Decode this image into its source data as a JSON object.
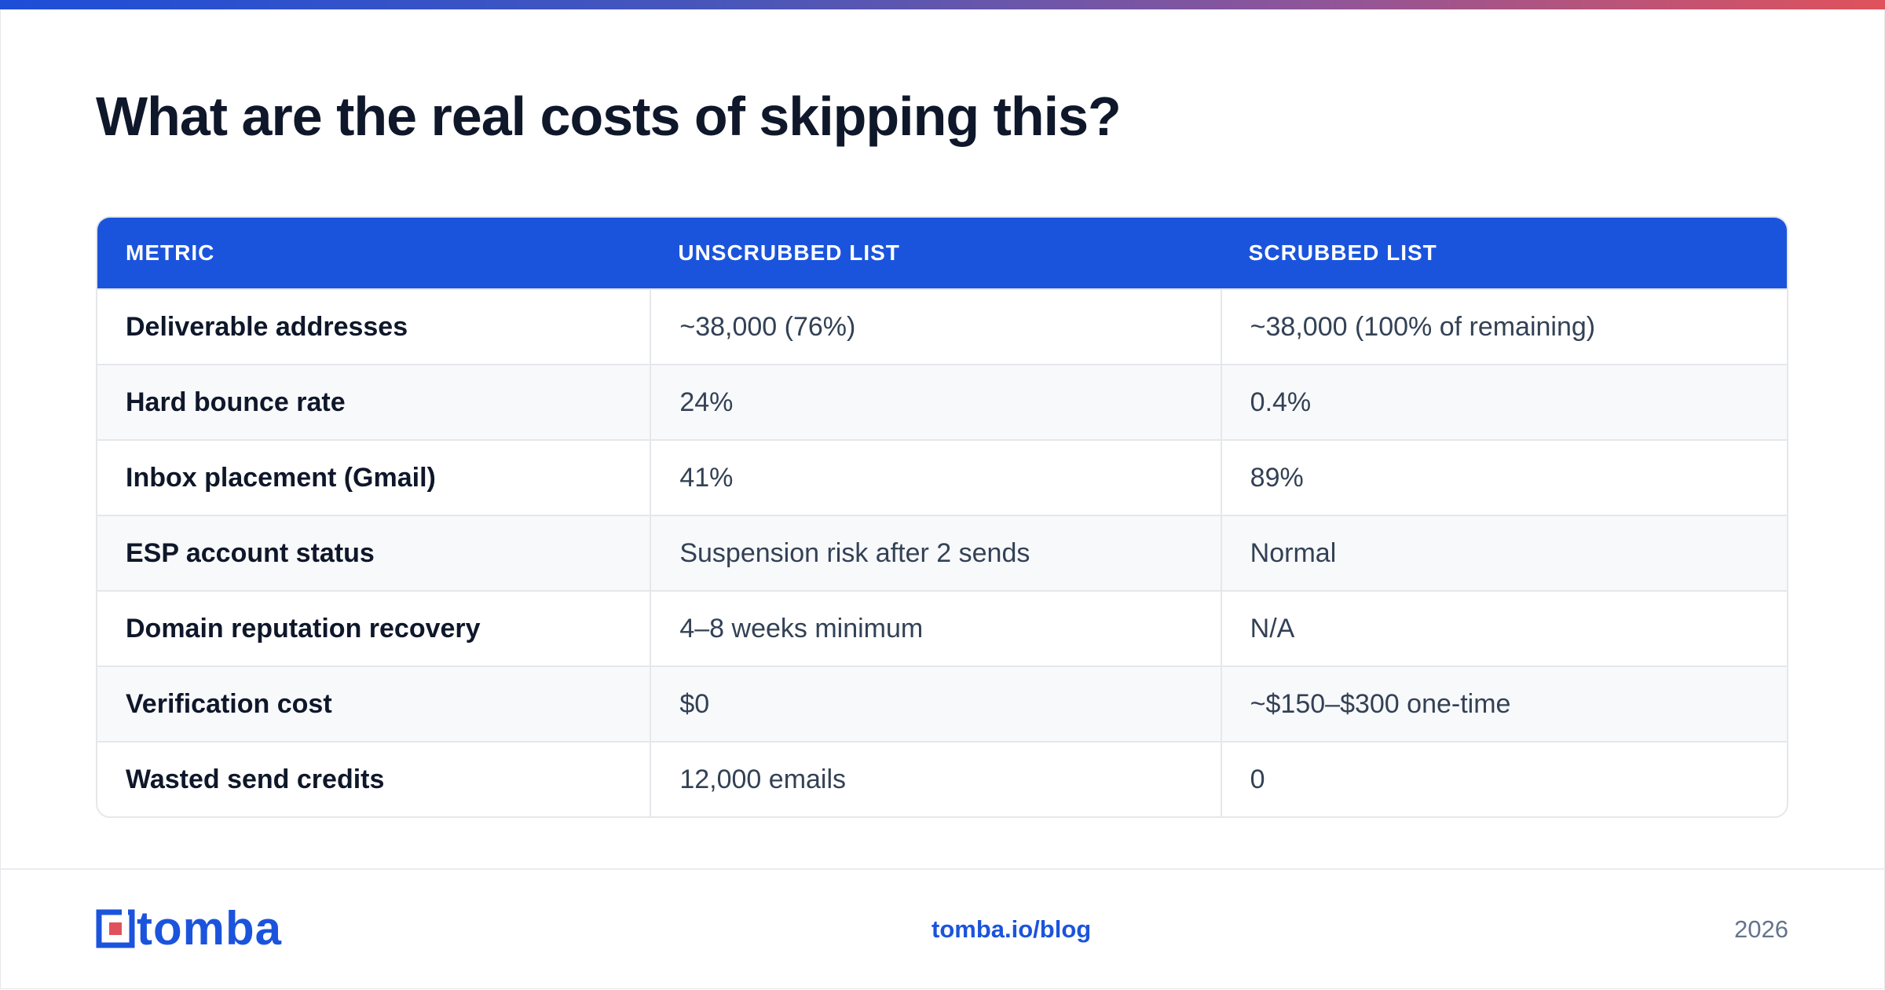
{
  "title": "What are the real costs of skipping this?",
  "table": {
    "headers": [
      "METRIC",
      "UNSCRUBBED LIST",
      "SCRUBBED LIST"
    ],
    "rows": [
      [
        "Deliverable addresses",
        "~38,000 (76%)",
        "~38,000 (100% of remaining)"
      ],
      [
        "Hard bounce rate",
        "24%",
        "0.4%"
      ],
      [
        "Inbox placement (Gmail)",
        "41%",
        "89%"
      ],
      [
        "ESP account status",
        "Suspension risk after 2 sends",
        "Normal"
      ],
      [
        "Domain reputation recovery",
        "4–8 weeks minimum",
        "N/A"
      ],
      [
        "Verification cost",
        "$0",
        "~$150–$300 one-time"
      ],
      [
        "Wasted send credits",
        "12,000 emails",
        "0"
      ]
    ]
  },
  "footer": {
    "logo_text": "tomba",
    "site": "tomba.io/blog",
    "year": "2026"
  },
  "colors": {
    "brand_blue": "#1b54dc",
    "title": "#0f172a",
    "accent_red": "#e0525b"
  }
}
